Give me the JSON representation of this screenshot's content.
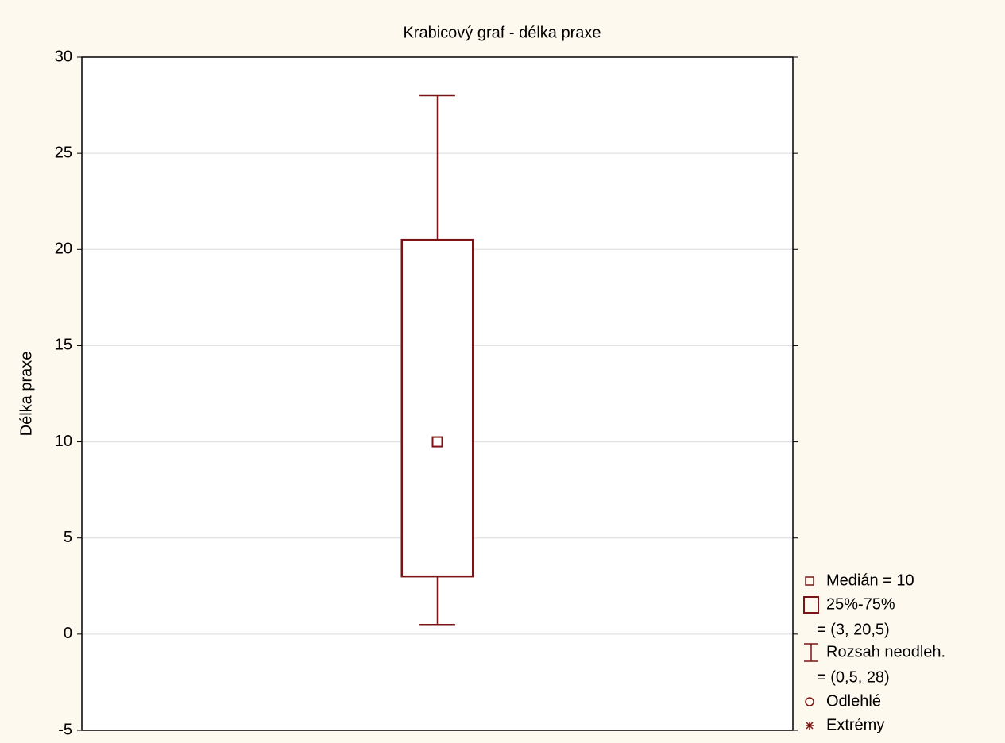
{
  "chart_data": {
    "type": "box",
    "title": "Krabicový graf - délka praxe",
    "ylabel": "Délka praxe",
    "boxes": [
      {
        "median": 10,
        "q1": 3,
        "q3": 20.5,
        "whislo": 0.5,
        "whishi": 28
      }
    ],
    "color": "#7b1414",
    "ylim": [
      -5,
      30
    ],
    "yticks": [
      -5,
      0,
      5,
      10,
      15,
      20,
      25,
      30
    ],
    "grid": true,
    "legend": [
      "Medián = 10",
      "25%-75%",
      "= (3, 20,5)",
      "Rozsah neodleh.",
      "= (0,5, 28)",
      "Odlehlé",
      "Extrémy"
    ],
    "legend_position": "lower right"
  }
}
